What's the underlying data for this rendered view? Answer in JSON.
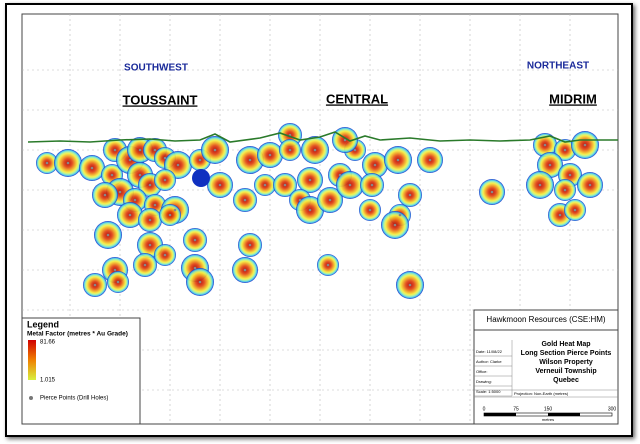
{
  "labels": {
    "southwest": "SOUTHWEST",
    "northeast": "NORTHEAST",
    "zones": [
      "TOUSSAINT",
      "CENTRAL",
      "MIDRIM"
    ]
  },
  "legend": {
    "title": "Legend",
    "subtitle": "Metal Factor (metres * Au Grade)",
    "max": "81.66",
    "min": "1.015",
    "points": "Pierce Points (Drill Holes)"
  },
  "title_block": {
    "company": "Hawkmoon Resources (CSE:HM)",
    "lines": [
      "Gold Heat Map",
      "Long Section Pierce Points",
      "Wilson Property",
      "Verneuil Township",
      "Quebec"
    ],
    "fields": [
      "Date: 11/08/22",
      "Author: Clarke",
      "Office:",
      "Drawing:",
      "Scale: 1:5000"
    ],
    "projection": "Projection: Non-Earth (metres)",
    "scale_bar": {
      "ticks": [
        "0",
        "75",
        "150",
        "300"
      ],
      "unit": "metres"
    }
  }
}
